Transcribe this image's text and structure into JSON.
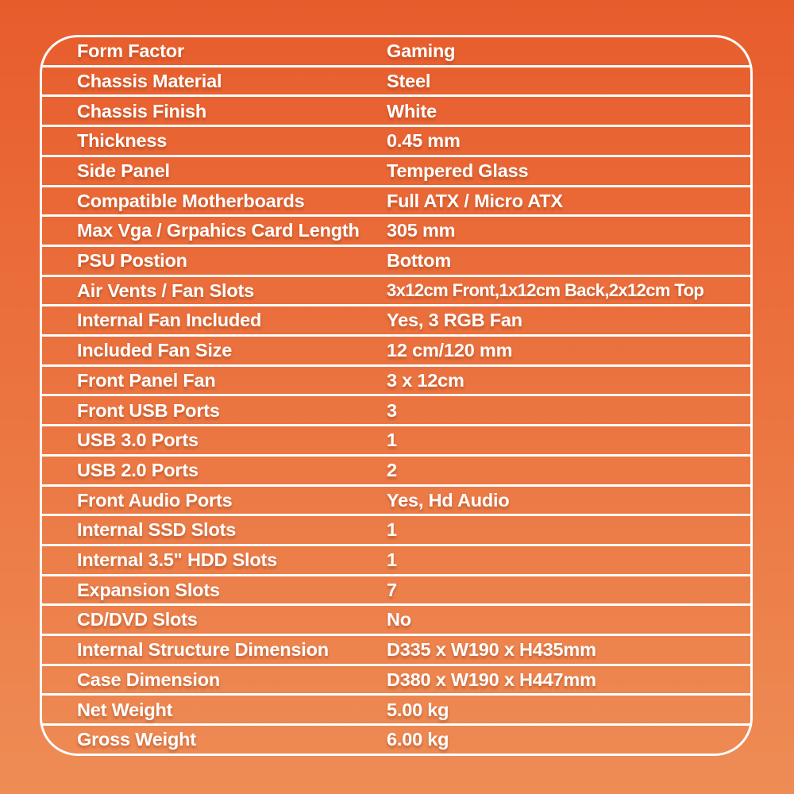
{
  "page": {
    "background_gradient_top": "#E85C2C",
    "background_gradient_bottom": "#EE8C55",
    "rule_color": "#FFFFFF",
    "text_color": "#FFFFFF"
  },
  "spec_table": {
    "rows": [
      {
        "label": "Form Factor",
        "value": "Gaming"
      },
      {
        "label": "Chassis Material",
        "value": "Steel"
      },
      {
        "label": "Chassis Finish",
        "value": "White"
      },
      {
        "label": "Thickness",
        "value": "0.45 mm"
      },
      {
        "label": "Side Panel",
        "value": "Tempered Glass"
      },
      {
        "label": "Compatible Motherboards",
        "value": "Full ATX / Micro ATX"
      },
      {
        "label": "Max Vga / Grpahics Card Length",
        "value": "305 mm"
      },
      {
        "label": "PSU Postion",
        "value": "Bottom"
      },
      {
        "label": "Air Vents / Fan Slots",
        "value": "3x12cm Front,1x12cm Back,2x12cm Top"
      },
      {
        "label": "Internal Fan Included",
        "value": "Yes, 3 RGB Fan"
      },
      {
        "label": "Included Fan Size",
        "value": "12 cm/120 mm"
      },
      {
        "label": "Front Panel Fan",
        "value": "3 x 12cm"
      },
      {
        "label": "Front USB Ports",
        "value": "3"
      },
      {
        "label": "USB 3.0 Ports",
        "value": "1"
      },
      {
        "label": "USB 2.0 Ports",
        "value": "2"
      },
      {
        "label": "Front Audio Ports",
        "value": "Yes, Hd Audio"
      },
      {
        "label": "Internal SSD Slots",
        "value": "1"
      },
      {
        "label": "Internal 3.5\" HDD Slots",
        "value": "1"
      },
      {
        "label": "Expansion Slots",
        "value": "7"
      },
      {
        "label": "CD/DVD Slots",
        "value": "No"
      },
      {
        "label": "Internal Structure Dimension",
        "value": "D335 x W190 x H435mm"
      },
      {
        "label": "Case Dimension",
        "value": "D380 x W190 x H447mm"
      },
      {
        "label": "Net Weight",
        "value": "5.00 kg"
      },
      {
        "label": "Gross Weight",
        "value": "6.00 kg"
      }
    ]
  }
}
